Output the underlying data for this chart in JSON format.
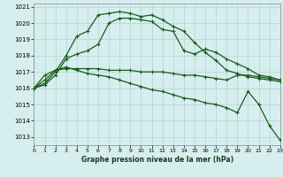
{
  "xlabel": "Graphe pression niveau de la mer (hPa)",
  "xlim": [
    0,
    23
  ],
  "ylim": [
    1012.5,
    1021.2
  ],
  "yticks": [
    1013,
    1014,
    1015,
    1016,
    1017,
    1018,
    1019,
    1020,
    1021
  ],
  "xticks": [
    0,
    1,
    2,
    3,
    4,
    5,
    6,
    7,
    8,
    9,
    10,
    11,
    12,
    13,
    14,
    15,
    16,
    17,
    18,
    19,
    20,
    21,
    22,
    23
  ],
  "bg_color": "#d6eeee",
  "grid_color": "#b8d8d8",
  "line_color": "#1a5c1a",
  "lines": [
    {
      "x": [
        0,
        1,
        2,
        3,
        4,
        5,
        6,
        7,
        8,
        9,
        10,
        11,
        12,
        13,
        14,
        15,
        16,
        17,
        18,
        19,
        20,
        21,
        22,
        23
      ],
      "y": [
        1016.0,
        1016.3,
        1017.0,
        1018.0,
        1019.2,
        1019.5,
        1020.5,
        1020.6,
        1020.7,
        1020.6,
        1020.4,
        1020.5,
        1020.2,
        1019.8,
        1019.5,
        1018.8,
        1018.2,
        1017.7,
        1017.1,
        1016.9,
        1016.7,
        1016.6,
        1016.5,
        1016.4
      ]
    },
    {
      "x": [
        0,
        1,
        2,
        3,
        4,
        5,
        6,
        7,
        8,
        9,
        10,
        11,
        12,
        13,
        14,
        15,
        16,
        17,
        18,
        19,
        20,
        21,
        22,
        23
      ],
      "y": [
        1016.0,
        1016.2,
        1016.8,
        1017.8,
        1018.1,
        1018.3,
        1018.7,
        1020.0,
        1020.3,
        1020.3,
        1020.2,
        1020.1,
        1019.6,
        1019.5,
        1018.3,
        1018.1,
        1018.4,
        1018.2,
        1017.8,
        1017.5,
        1017.2,
        1016.8,
        1016.7,
        1016.5
      ]
    },
    {
      "x": [
        0,
        1,
        2,
        3,
        4,
        5,
        6,
        7,
        8,
        9,
        10,
        11,
        12,
        13,
        14,
        15,
        16,
        17,
        18,
        19,
        20,
        21,
        22,
        23
      ],
      "y": [
        1016.0,
        1016.8,
        1017.1,
        1017.2,
        1017.2,
        1017.2,
        1017.2,
        1017.1,
        1017.1,
        1017.1,
        1017.0,
        1017.0,
        1017.0,
        1016.9,
        1016.8,
        1016.8,
        1016.7,
        1016.6,
        1016.5,
        1016.8,
        1016.8,
        1016.7,
        1016.6,
        1016.5
      ]
    },
    {
      "x": [
        0,
        1,
        2,
        3,
        4,
        5,
        6,
        7,
        8,
        9,
        10,
        11,
        12,
        13,
        14,
        15,
        16,
        17,
        18,
        19,
        20,
        21,
        22,
        23
      ],
      "y": [
        1016.0,
        1016.5,
        1017.1,
        1017.3,
        1017.1,
        1016.9,
        1016.8,
        1016.7,
        1016.5,
        1016.3,
        1016.1,
        1015.9,
        1015.8,
        1015.6,
        1015.4,
        1015.3,
        1015.1,
        1015.0,
        1014.8,
        1014.5,
        1015.8,
        1015.0,
        1013.7,
        1012.8
      ]
    }
  ]
}
